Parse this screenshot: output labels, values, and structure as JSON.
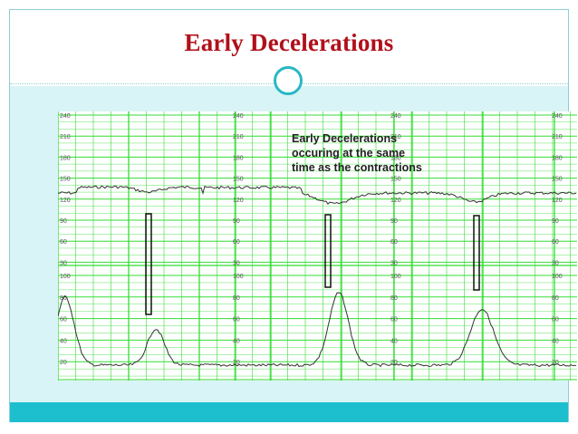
{
  "slide": {
    "title": "Early Decelerations",
    "annotation": "Early Decelerations\noccuring at the same\ntime as the contractions"
  },
  "strip": {
    "fhr_labels": [
      "240",
      "210",
      "180",
      "150",
      "120",
      "90",
      "60",
      "30"
    ],
    "uc_labels": [
      "100",
      "80",
      "60",
      "40",
      "20"
    ],
    "colors": {
      "grid": "#33dd33",
      "trace": "#333333",
      "marker": "#111111",
      "title": "#b0101a",
      "accent": "#1dbfcf"
    }
  }
}
